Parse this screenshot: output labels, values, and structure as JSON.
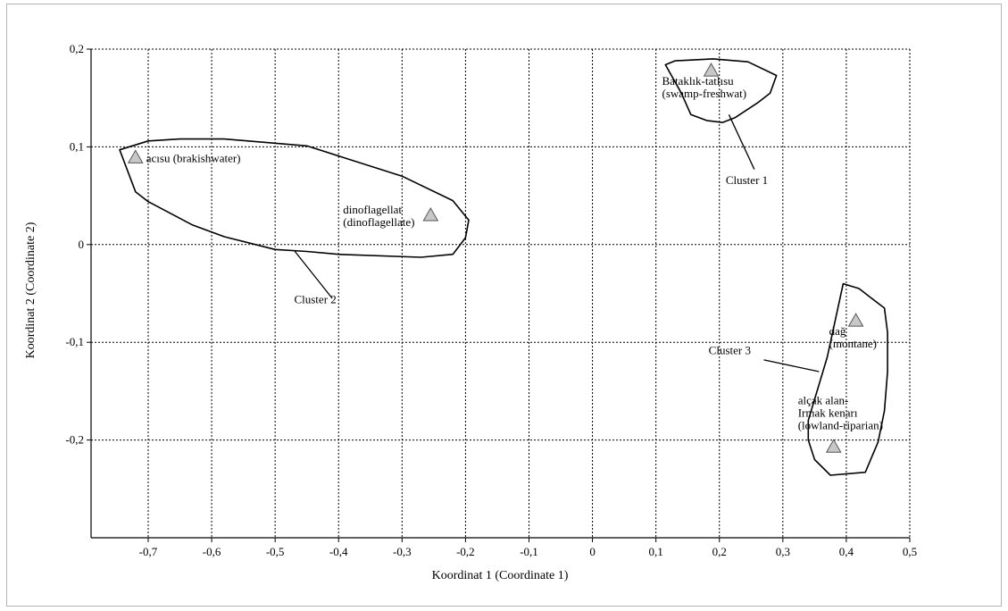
{
  "chart_data": {
    "type": "scatter",
    "title": "",
    "xlabel": "Koordinat 1 (Coordinate 1)",
    "ylabel": "Koordinat 2 (Coordinate 2)",
    "xlim": [
      -0.79,
      0.5
    ],
    "ylim": [
      -0.3,
      0.2
    ],
    "grid": true,
    "x_ticks": [
      {
        "value": -0.7,
        "label": "-0,7"
      },
      {
        "value": -0.6,
        "label": "-0,6"
      },
      {
        "value": -0.5,
        "label": "-0,5"
      },
      {
        "value": -0.4,
        "label": "-0,4"
      },
      {
        "value": -0.3,
        "label": "-0,3"
      },
      {
        "value": -0.2,
        "label": "-0,2"
      },
      {
        "value": -0.1,
        "label": "-0,1"
      },
      {
        "value": 0,
        "label": "0"
      },
      {
        "value": 0.1,
        "label": "0,1"
      },
      {
        "value": 0.2,
        "label": "0,2"
      },
      {
        "value": 0.3,
        "label": "0,3"
      },
      {
        "value": 0.4,
        "label": "0,4"
      },
      {
        "value": 0.5,
        "label": "0,5"
      }
    ],
    "y_ticks": [
      {
        "value": 0.2,
        "label": "0,2"
      },
      {
        "value": 0.1,
        "label": "0,1"
      },
      {
        "value": 0,
        "label": "0"
      },
      {
        "value": -0.1,
        "label": "-0,1"
      },
      {
        "value": -0.2,
        "label": "-0,2"
      }
    ],
    "points": [
      {
        "x": -0.72,
        "y": 0.089,
        "label": [
          "acısu (brakishwater)"
        ],
        "label_anchor": "right"
      },
      {
        "x": -0.255,
        "y": 0.03,
        "label": [
          "dinoflagellat",
          "(dinoflagellate)"
        ],
        "label_anchor": "below-left"
      },
      {
        "x": 0.187,
        "y": 0.178,
        "label": [
          "Bataklık-tatlısu",
          "(swamp-freshwat)"
        ],
        "label_anchor": "below"
      },
      {
        "x": 0.415,
        "y": -0.078,
        "label": [
          "dağ",
          "(montane)"
        ],
        "label_anchor": "below"
      },
      {
        "x": 0.38,
        "y": -0.207,
        "label": [
          "alçak alan-",
          "Irmak kenarı",
          "(lowland-riparian)"
        ],
        "label_anchor": "above"
      }
    ],
    "clusters": [
      {
        "name": "Cluster 1",
        "hull": [
          [
            0.115,
            0.184
          ],
          [
            0.13,
            0.188
          ],
          [
            0.19,
            0.19
          ],
          [
            0.245,
            0.187
          ],
          [
            0.29,
            0.173
          ],
          [
            0.28,
            0.155
          ],
          [
            0.26,
            0.145
          ],
          [
            0.225,
            0.13
          ],
          [
            0.205,
            0.125
          ],
          [
            0.18,
            0.127
          ],
          [
            0.155,
            0.133
          ],
          [
            0.14,
            0.155
          ]
        ]
      },
      {
        "name": "Cluster 2",
        "hull": [
          [
            -0.745,
            0.097
          ],
          [
            -0.7,
            0.106
          ],
          [
            -0.65,
            0.108
          ],
          [
            -0.58,
            0.108
          ],
          [
            -0.45,
            0.101
          ],
          [
            -0.3,
            0.07
          ],
          [
            -0.22,
            0.045
          ],
          [
            -0.195,
            0.025
          ],
          [
            -0.2,
            0.007
          ],
          [
            -0.22,
            -0.01
          ],
          [
            -0.27,
            -0.013
          ],
          [
            -0.4,
            -0.01
          ],
          [
            -0.45,
            -0.007
          ],
          [
            -0.5,
            -0.005
          ],
          [
            -0.58,
            0.008
          ],
          [
            -0.63,
            0.02
          ],
          [
            -0.7,
            0.044
          ],
          [
            -0.72,
            0.054
          ]
        ]
      },
      {
        "name": "Cluster 3",
        "hull": [
          [
            0.34,
            -0.2
          ],
          [
            0.34,
            -0.18
          ],
          [
            0.37,
            -0.115
          ],
          [
            0.395,
            -0.04
          ],
          [
            0.42,
            -0.045
          ],
          [
            0.44,
            -0.055
          ],
          [
            0.46,
            -0.065
          ],
          [
            0.465,
            -0.09
          ],
          [
            0.465,
            -0.13
          ],
          [
            0.46,
            -0.17
          ],
          [
            0.45,
            -0.202
          ],
          [
            0.43,
            -0.233
          ],
          [
            0.375,
            -0.236
          ],
          [
            0.35,
            -0.22
          ]
        ]
      }
    ],
    "annotations": [
      {
        "text": "Cluster 1",
        "x": 0.21,
        "y": -0.105,
        "anchor_hull": 0
      },
      {
        "text": "Cluster 2",
        "x": -0.47,
        "y": -0.055,
        "anchor_hull": 1
      },
      {
        "text": "Cluster 3",
        "x": 0.22,
        "y": -0.115,
        "anchor_hull": 2
      }
    ]
  }
}
